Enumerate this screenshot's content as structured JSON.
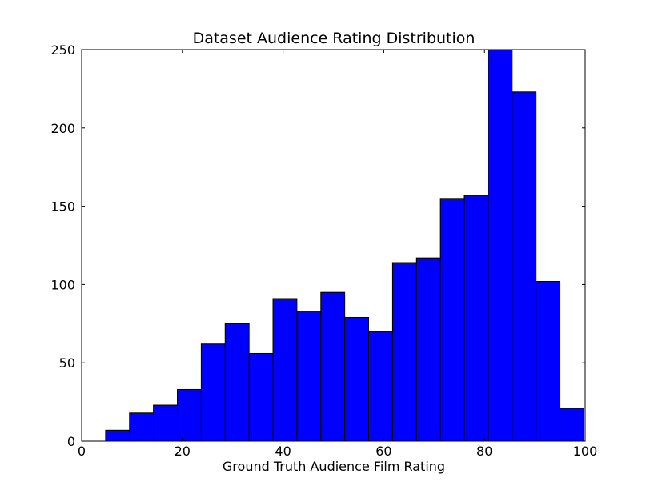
{
  "chart_data": {
    "type": "bar",
    "title": "Dataset Audience Rating Distribution",
    "xlabel": "Ground Truth Audience Film Rating",
    "ylabel": "",
    "xlim": [
      0,
      100
    ],
    "ylim": [
      0,
      250
    ],
    "x_ticks": [
      "0",
      "20",
      "40",
      "60",
      "80",
      "100"
    ],
    "y_ticks": [
      "0",
      "50",
      "100",
      "150",
      "200",
      "250"
    ],
    "grid": false,
    "bar_color": "#0000ff",
    "bins": [
      {
        "start": 4.75,
        "end": 9.5,
        "count": 7
      },
      {
        "start": 9.5,
        "end": 14.25,
        "count": 18
      },
      {
        "start": 14.25,
        "end": 19.0,
        "count": 23
      },
      {
        "start": 19.0,
        "end": 23.75,
        "count": 33
      },
      {
        "start": 23.75,
        "end": 28.5,
        "count": 62
      },
      {
        "start": 28.5,
        "end": 33.25,
        "count": 75
      },
      {
        "start": 33.25,
        "end": 38.0,
        "count": 56
      },
      {
        "start": 38.0,
        "end": 42.75,
        "count": 91
      },
      {
        "start": 42.75,
        "end": 47.5,
        "count": 83
      },
      {
        "start": 47.5,
        "end": 52.25,
        "count": 95
      },
      {
        "start": 52.25,
        "end": 57.0,
        "count": 79
      },
      {
        "start": 57.0,
        "end": 61.75,
        "count": 70
      },
      {
        "start": 61.75,
        "end": 66.5,
        "count": 114
      },
      {
        "start": 66.5,
        "end": 71.25,
        "count": 117
      },
      {
        "start": 71.25,
        "end": 76.0,
        "count": 155
      },
      {
        "start": 76.0,
        "end": 80.75,
        "count": 157
      },
      {
        "start": 80.75,
        "end": 85.5,
        "count": 250
      },
      {
        "start": 85.5,
        "end": 90.25,
        "count": 223
      },
      {
        "start": 90.25,
        "end": 95.0,
        "count": 102
      },
      {
        "start": 95.0,
        "end": 99.75,
        "count": 21
      }
    ]
  }
}
